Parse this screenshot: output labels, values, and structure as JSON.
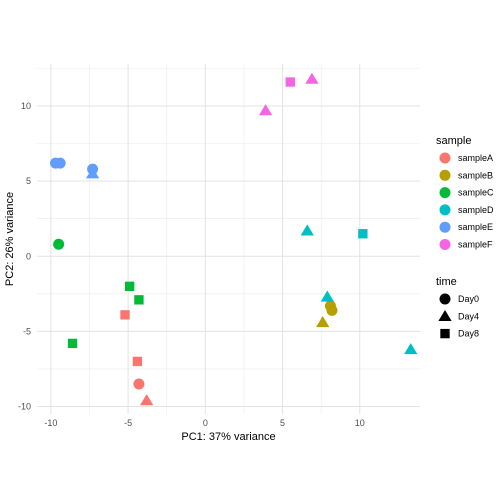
{
  "chart_data": {
    "type": "scatter",
    "xlabel": "PC1: 37% variance",
    "ylabel": "PC2: 26% variance",
    "xlim": [
      -10.9,
      13.9
    ],
    "ylim": [
      -10.5,
      12.8
    ],
    "x_ticks": [
      -10,
      -5,
      0,
      5,
      10
    ],
    "y_ticks": [
      -10,
      -5,
      0,
      5,
      10
    ],
    "x_tick_labels": [
      "-10",
      "-5",
      "0",
      "5",
      "10"
    ],
    "y_tick_labels": [
      "-10",
      "-5",
      "0",
      "5",
      "10"
    ],
    "grid": true,
    "legend_position": "right",
    "color_legend": {
      "title": "sample",
      "items": [
        {
          "label": "sampleA",
          "color": "#F8766D"
        },
        {
          "label": "sampleB",
          "color": "#B79F00"
        },
        {
          "label": "sampleC",
          "color": "#00BA38"
        },
        {
          "label": "sampleD",
          "color": "#00BFC4"
        },
        {
          "label": "sampleE",
          "color": "#619CFF"
        },
        {
          "label": "sampleF",
          "color": "#F564E3"
        }
      ]
    },
    "shape_legend": {
      "title": "time",
      "items": [
        {
          "label": "Day0",
          "shape": "circle"
        },
        {
          "label": "Day4",
          "shape": "triangle"
        },
        {
          "label": "Day8",
          "shape": "square"
        }
      ]
    },
    "points": [
      {
        "sample": "sampleA",
        "time": "Day0",
        "x": -4.3,
        "y": -8.5
      },
      {
        "sample": "sampleA",
        "time": "Day4",
        "x": -3.8,
        "y": -9.6
      },
      {
        "sample": "sampleA",
        "time": "Day8",
        "x": -4.4,
        "y": -7.0
      },
      {
        "sample": "sampleA",
        "time": "Day8",
        "x": -5.2,
        "y": -3.9
      },
      {
        "sample": "sampleB",
        "time": "Day0",
        "x": 8.1,
        "y": -3.3
      },
      {
        "sample": "sampleB",
        "time": "Day0",
        "x": 8.2,
        "y": -3.6
      },
      {
        "sample": "sampleB",
        "time": "Day4",
        "x": 7.6,
        "y": -4.4
      },
      {
        "sample": "sampleC",
        "time": "Day0",
        "x": -9.5,
        "y": 0.8
      },
      {
        "sample": "sampleC",
        "time": "Day8",
        "x": -4.9,
        "y": -2.0
      },
      {
        "sample": "sampleC",
        "time": "Day8",
        "x": -4.3,
        "y": -2.9
      },
      {
        "sample": "sampleC",
        "time": "Day8",
        "x": -8.6,
        "y": -5.8
      },
      {
        "sample": "sampleD",
        "time": "Day4",
        "x": 6.6,
        "y": 1.7
      },
      {
        "sample": "sampleD",
        "time": "Day8",
        "x": 10.2,
        "y": 1.5
      },
      {
        "sample": "sampleD",
        "time": "Day4",
        "x": 7.9,
        "y": -2.7
      },
      {
        "sample": "sampleD",
        "time": "Day4",
        "x": 13.3,
        "y": -6.2
      },
      {
        "sample": "sampleE",
        "time": "Day0",
        "x": -9.7,
        "y": 6.2
      },
      {
        "sample": "sampleE",
        "time": "Day0",
        "x": -9.4,
        "y": 6.2
      },
      {
        "sample": "sampleE",
        "time": "Day0",
        "x": -7.3,
        "y": 5.8
      },
      {
        "sample": "sampleE",
        "time": "Day4",
        "x": -7.3,
        "y": 5.5
      },
      {
        "sample": "sampleF",
        "time": "Day4",
        "x": 3.9,
        "y": 9.7
      },
      {
        "sample": "sampleF",
        "time": "Day8",
        "x": 5.5,
        "y": 11.6
      },
      {
        "sample": "sampleF",
        "time": "Day4",
        "x": 6.9,
        "y": 11.8
      }
    ]
  }
}
